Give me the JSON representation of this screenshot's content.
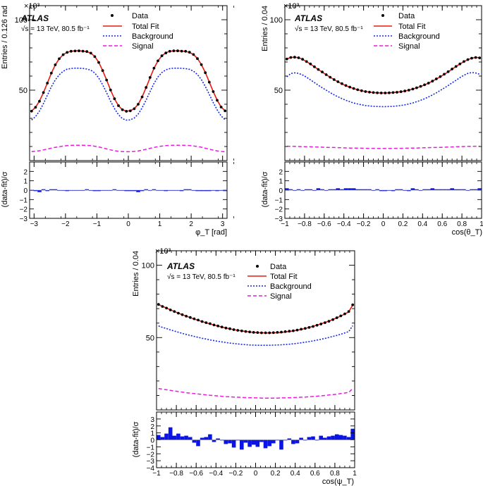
{
  "colors": {
    "data": "#000000",
    "fit": "#e8190f",
    "background": "#1427e6",
    "signal": "#e31fd9",
    "residual": "#0a14e6"
  },
  "legend": {
    "data": "Data",
    "fit": "Total Fit",
    "background": "Background",
    "signal": "Signal"
  },
  "atlas_label": "ATLAS",
  "energy_label": "√s = 13 TeV, 80.5 fb⁻¹",
  "exponent_label": "×10³",
  "chart_data": [
    {
      "type": "line",
      "id": "phi",
      "title": "",
      "xlabel": "φ_T [rad]",
      "ylabel": "Entries / 0.126 rad",
      "ratio_ylabel": "(data-fit)/σ",
      "xlim": [
        -3.1416,
        3.1416
      ],
      "ylim": [
        0,
        110
      ],
      "ratio_ylim": [
        -3,
        3
      ],
      "xticks": [
        -3,
        -2,
        -1,
        0,
        1,
        2,
        3
      ],
      "xticklabels": [
        "−3",
        "−2",
        "−1",
        "0",
        "1",
        "2",
        "3"
      ],
      "yticks": [
        50,
        100
      ],
      "yticklabels": [
        "50",
        "100"
      ],
      "ratio_yticks": [
        -3,
        -2,
        -1,
        0,
        1,
        2
      ],
      "ratio_yticklabels": [
        "−3",
        "−2",
        "−1",
        "0",
        "1",
        "2"
      ],
      "n_bins": 50,
      "data": [
        35.1,
        37.8,
        42.1,
        48.3,
        55.0,
        62.1,
        68.0,
        72.3,
        75.2,
        76.8,
        77.6,
        77.8,
        77.9,
        77.7,
        77.4,
        76.3,
        73.8,
        69.7,
        63.9,
        57.2,
        50.1,
        43.9,
        39.0,
        36.1,
        35.0,
        35.3,
        36.8,
        40.0,
        45.2,
        51.9,
        59.0,
        65.6,
        70.8,
        74.4,
        76.4,
        77.6,
        77.9,
        77.9,
        77.7,
        77.6,
        76.9,
        75.3,
        72.4,
        68.1,
        62.4,
        55.7,
        49.0,
        42.8,
        38.0,
        35.3
      ],
      "fit": [
        35.2,
        37.9,
        42.3,
        48.2,
        55.1,
        62.0,
        67.9,
        72.3,
        75.2,
        76.9,
        77.6,
        77.9,
        77.9,
        77.7,
        77.3,
        76.3,
        73.9,
        69.8,
        63.9,
        57.2,
        50.1,
        43.8,
        39.0,
        36.1,
        35.1,
        35.4,
        36.9,
        40.0,
        45.3,
        51.8,
        58.8,
        65.5,
        70.8,
        74.4,
        76.5,
        77.6,
        77.9,
        77.9,
        77.8,
        77.5,
        76.8,
        75.3,
        72.5,
        68.2,
        62.5,
        55.8,
        49.0,
        42.9,
        38.0,
        35.4
      ],
      "background": [
        28.8,
        31.2,
        35.2,
        40.4,
        46.4,
        52.4,
        57.3,
        60.9,
        63.4,
        64.9,
        65.4,
        65.6,
        65.6,
        65.4,
        65.0,
        64.2,
        62.2,
        58.7,
        53.8,
        48.2,
        42.2,
        36.9,
        32.6,
        29.8,
        28.7,
        28.9,
        30.2,
        33.0,
        37.5,
        43.0,
        49.0,
        54.8,
        59.4,
        62.5,
        64.4,
        65.3,
        65.6,
        65.6,
        65.5,
        65.3,
        64.8,
        63.5,
        61.1,
        57.5,
        52.6,
        47.0,
        41.2,
        36.0,
        31.7,
        29.0
      ],
      "signal": [
        6.4,
        6.6,
        7.0,
        7.6,
        8.2,
        8.8,
        9.4,
        9.9,
        10.3,
        10.6,
        10.8,
        10.9,
        10.9,
        10.9,
        10.8,
        10.6,
        10.2,
        9.7,
        9.0,
        8.3,
        7.6,
        7.0,
        6.6,
        6.4,
        6.3,
        6.3,
        6.5,
        6.8,
        7.4,
        8.0,
        8.7,
        9.3,
        9.9,
        10.3,
        10.6,
        10.8,
        10.9,
        10.9,
        10.9,
        10.8,
        10.7,
        10.4,
        10.0,
        9.5,
        8.8,
        8.1,
        7.4,
        6.9,
        6.5,
        6.3
      ],
      "residual": [
        0.0,
        -0.1,
        -0.2,
        0.1,
        -0.1,
        0.1,
        0.1,
        0.0,
        0.0,
        -0.1,
        0.0,
        0.0,
        0.0,
        0.0,
        0.1,
        0.0,
        -0.1,
        -0.1,
        0.0,
        0.0,
        0.0,
        0.1,
        0.0,
        0.0,
        -0.1,
        -0.1,
        -0.1,
        -0.2,
        -0.1,
        0.1,
        0.0,
        0.1,
        0.0,
        0.0,
        -0.1,
        0.0,
        0.0,
        0.0,
        -0.1,
        0.1,
        0.1,
        0.0,
        -0.1,
        -0.1,
        -0.1,
        -0.1,
        0.0,
        -0.1,
        0.0,
        -0.1
      ]
    },
    {
      "type": "line",
      "id": "costheta",
      "title": "",
      "xlabel": "cos(θ_T)",
      "ylabel": "Entries / 0.04",
      "ratio_ylabel": "(data-fit)/σ",
      "xlim": [
        -1,
        1
      ],
      "ylim": [
        0,
        110
      ],
      "ratio_ylim": [
        -3,
        3
      ],
      "xticks": [
        -1,
        -0.8,
        -0.6,
        -0.4,
        -0.2,
        0,
        0.2,
        0.4,
        0.6,
        0.8,
        1
      ],
      "xticklabels": [
        "−1",
        "−0.8",
        "−0.6",
        "−0.4",
        "−0.2",
        "0",
        "0.2",
        "0.4",
        "0.6",
        "0.8",
        "1"
      ],
      "yticks": [
        50,
        100
      ],
      "yticklabels": [
        "50",
        "100"
      ],
      "ratio_yticks": [
        -3,
        -2,
        -1,
        0,
        1,
        2
      ],
      "ratio_yticklabels": [
        "−3",
        "−2",
        "−1",
        "0",
        "1",
        "2"
      ],
      "n_bins": 50,
      "data": [
        72.1,
        73.2,
        73.4,
        73.0,
        71.9,
        70.3,
        68.6,
        66.6,
        64.7,
        62.9,
        61.0,
        59.2,
        57.5,
        56.0,
        54.6,
        53.3,
        52.2,
        51.2,
        50.3,
        49.6,
        49.0,
        48.6,
        48.3,
        48.1,
        48.0,
        48.0,
        48.1,
        48.3,
        48.5,
        48.9,
        49.4,
        50.0,
        50.8,
        51.7,
        52.7,
        53.8,
        55.0,
        56.4,
        58.0,
        59.6,
        61.3,
        63.1,
        65.0,
        66.8,
        68.6,
        70.3,
        71.7,
        72.7,
        73.2,
        72.9
      ],
      "fit": [
        72.2,
        73.2,
        73.4,
        73.0,
        71.9,
        70.3,
        68.5,
        66.6,
        64.7,
        62.8,
        61.0,
        59.2,
        57.5,
        55.9,
        54.5,
        53.2,
        52.1,
        51.1,
        50.3,
        49.6,
        49.0,
        48.6,
        48.3,
        48.1,
        48.0,
        48.0,
        48.1,
        48.3,
        48.6,
        48.9,
        49.4,
        50.0,
        50.8,
        51.6,
        52.6,
        53.7,
        55.0,
        56.4,
        57.9,
        59.5,
        61.2,
        63.0,
        64.9,
        66.8,
        68.6,
        70.2,
        71.7,
        72.7,
        73.2,
        73.1
      ],
      "background": [
        59.5,
        61.8,
        62.3,
        61.9,
        60.8,
        59.2,
        57.3,
        55.4,
        53.5,
        51.7,
        50.0,
        48.3,
        46.7,
        45.3,
        44.0,
        42.8,
        41.8,
        40.9,
        40.2,
        39.6,
        39.1,
        38.8,
        38.5,
        38.4,
        38.3,
        38.3,
        38.4,
        38.5,
        38.8,
        39.1,
        39.6,
        40.2,
        40.9,
        41.8,
        42.8,
        43.9,
        45.2,
        46.6,
        48.1,
        49.8,
        51.5,
        53.3,
        55.2,
        57.0,
        58.9,
        60.6,
        61.9,
        62.5,
        62.2,
        61.3
      ],
      "signal": [
        10.2,
        10.1,
        10.1,
        10.0,
        9.9,
        9.8,
        9.8,
        9.7,
        9.6,
        9.5,
        9.4,
        9.3,
        9.3,
        9.2,
        9.1,
        9.0,
        8.9,
        8.9,
        8.8,
        8.8,
        8.7,
        8.7,
        8.7,
        8.6,
        8.6,
        8.6,
        8.6,
        8.7,
        8.7,
        8.7,
        8.8,
        8.8,
        8.9,
        8.9,
        9.0,
        9.1,
        9.2,
        9.3,
        9.3,
        9.4,
        9.5,
        9.6,
        9.7,
        9.8,
        9.9,
        10.0,
        10.1,
        10.1,
        10.2,
        10.2
      ],
      "residual": [
        0.2,
        0.1,
        0.0,
        0.1,
        0.0,
        0.1,
        0.1,
        0.0,
        0.2,
        0.1,
        0.0,
        0.1,
        0.1,
        0.2,
        0.1,
        0.2,
        0.2,
        0.2,
        0.1,
        0.1,
        0.1,
        0.1,
        0.0,
        0.1,
        -0.1,
        -0.1,
        0.0,
        -0.1,
        0.1,
        0.1,
        0.0,
        -0.1,
        0.2,
        0.1,
        0.0,
        0.1,
        0.1,
        0.2,
        0.1,
        0.1,
        0.1,
        0.1,
        0.2,
        0.1,
        0.1,
        0.1,
        0.0,
        0.1,
        0.1,
        0.2
      ]
    },
    {
      "type": "line",
      "id": "cospsi",
      "title": "",
      "xlabel": "cos(ψ_T)",
      "ylabel": "Entries / 0.04",
      "ratio_ylabel": "(data-fit)/σ",
      "xlim": [
        -1,
        1
      ],
      "ylim": [
        0,
        110
      ],
      "ratio_ylim": [
        -4,
        4
      ],
      "xticks": [
        -1,
        -0.8,
        -0.6,
        -0.4,
        -0.2,
        0,
        0.2,
        0.4,
        0.6,
        0.8,
        1
      ],
      "xticklabels": [
        "−1",
        "−0.8",
        "−0.6",
        "−0.4",
        "−0.2",
        "0",
        "0.2",
        "0.4",
        "0.6",
        "0.8",
        "1"
      ],
      "yticks": [
        50,
        100
      ],
      "yticklabels": [
        "50",
        "100"
      ],
      "ratio_yticks": [
        -4,
        -3,
        -2,
        -1,
        0,
        1,
        2,
        3
      ],
      "ratio_yticklabels": [
        "−4",
        "−3",
        "−2",
        "−1",
        "0",
        "1",
        "2",
        "3"
      ],
      "n_bins": 50,
      "data": [
        72.9,
        71.5,
        70.4,
        69.1,
        68.0,
        66.9,
        65.8,
        64.8,
        63.9,
        63.0,
        62.1,
        61.1,
        60.3,
        59.6,
        58.7,
        58.0,
        57.3,
        56.6,
        56.1,
        55.5,
        55.0,
        54.6,
        54.2,
        53.9,
        53.6,
        53.5,
        53.3,
        53.3,
        53.3,
        53.4,
        53.6,
        53.8,
        54.1,
        54.4,
        54.7,
        55.2,
        55.8,
        56.3,
        57.0,
        57.7,
        58.5,
        59.4,
        60.3,
        61.3,
        62.4,
        63.7,
        65.0,
        66.4,
        68.0,
        72.6
      ],
      "fit": [
        72.8,
        71.6,
        70.4,
        69.2,
        68.0,
        66.9,
        65.8,
        64.8,
        63.8,
        62.8,
        61.9,
        61.1,
        60.2,
        59.4,
        58.7,
        57.9,
        57.3,
        56.6,
        56.0,
        55.5,
        55.0,
        54.6,
        54.2,
        53.9,
        53.6,
        53.4,
        53.3,
        53.2,
        53.2,
        53.3,
        53.4,
        53.6,
        53.9,
        54.2,
        54.6,
        55.1,
        55.7,
        56.3,
        57.0,
        57.8,
        58.6,
        59.5,
        60.4,
        61.4,
        62.5,
        63.7,
        64.9,
        66.3,
        67.8,
        72.5
      ],
      "background": [
        58.0,
        57.1,
        56.2,
        55.3,
        54.5,
        53.7,
        52.9,
        52.2,
        51.5,
        50.8,
        50.2,
        49.5,
        49.0,
        48.4,
        47.9,
        47.4,
        47.0,
        46.6,
        46.2,
        45.9,
        45.6,
        45.3,
        45.1,
        44.9,
        44.8,
        44.7,
        44.7,
        44.7,
        44.7,
        44.8,
        44.9,
        45.0,
        45.2,
        45.4,
        45.7,
        46.0,
        46.4,
        46.8,
        47.2,
        47.7,
        48.3,
        48.8,
        49.4,
        50.1,
        50.8,
        51.5,
        52.3,
        53.2,
        54.1,
        58.2
      ],
      "signal": [
        14.8,
        14.4,
        13.9,
        13.5,
        13.1,
        12.7,
        12.3,
        11.9,
        11.6,
        11.3,
        11.0,
        10.7,
        10.4,
        10.1,
        9.9,
        9.7,
        9.4,
        9.2,
        9.1,
        8.9,
        8.8,
        8.6,
        8.5,
        8.4,
        8.3,
        8.3,
        8.2,
        8.2,
        8.2,
        8.2,
        8.2,
        8.3,
        8.3,
        8.4,
        8.5,
        8.6,
        8.8,
        8.9,
        9.1,
        9.3,
        9.5,
        9.8,
        10.0,
        10.3,
        10.6,
        10.9,
        11.3,
        11.7,
        12.1,
        14.7
      ],
      "residual": [
        0.7,
        0.4,
        0.9,
        1.8,
        0.6,
        0.9,
        0.5,
        0.6,
        0.4,
        -0.4,
        -0.9,
        0.3,
        0.4,
        0.8,
        -0.3,
        0.2,
        0.0,
        -0.6,
        -0.5,
        -1.1,
        0.0,
        -1.4,
        -0.4,
        -1.0,
        -0.7,
        -1.0,
        -0.3,
        -1.2,
        -0.9,
        -0.5,
        0.0,
        -1.4,
        0.0,
        0.2,
        -0.6,
        -0.5,
        0.3,
        0.0,
        0.4,
        0.5,
        0.0,
        0.6,
        0.3,
        0.5,
        0.6,
        0.8,
        0.7,
        0.6,
        0.4,
        1.6
      ]
    }
  ]
}
